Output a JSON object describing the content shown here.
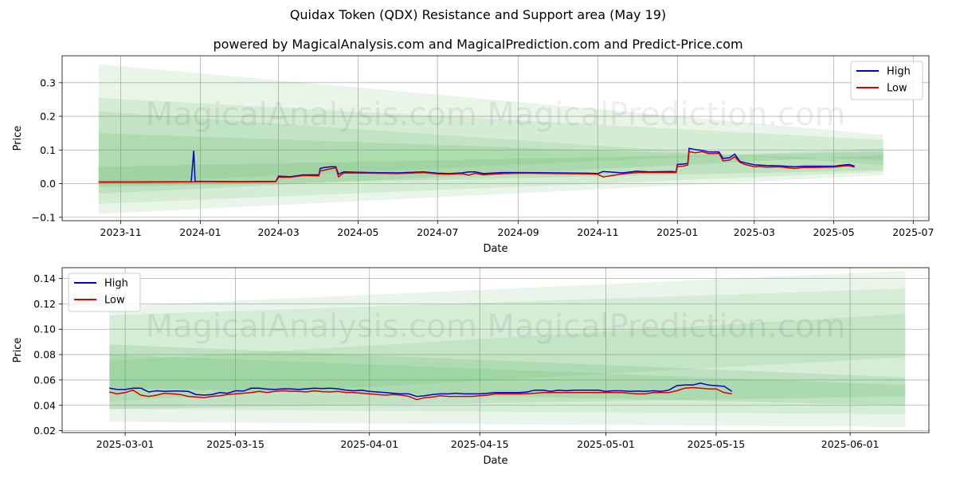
{
  "title": "Quidax Token (QDX) Resistance and Support area (May 19)",
  "subtitle": "powered by MagicalAnalysis.com and MagicalPrediction.com and Predict-Price.com",
  "watermark": "MagicalAnalysis.com   MagicalPrediction.com",
  "colors": {
    "high": "#0000cc",
    "low": "#dd0000",
    "band": "#4caf50",
    "grid": "#b0b0b0"
  },
  "chart_data": [
    {
      "type": "line",
      "xlabel": "Date",
      "ylabel": "Price",
      "xlim": [
        "2023-09-17",
        "2025-07-13"
      ],
      "ylim": [
        -0.11,
        0.38
      ],
      "x_ticks": [
        "2023-11-01",
        "2024-01-01",
        "2024-03-01",
        "2024-05-01",
        "2024-07-01",
        "2024-09-01",
        "2024-11-01",
        "2025-01-01",
        "2025-03-01",
        "2025-05-01",
        "2025-07-01"
      ],
      "x_tick_labels": [
        "2023-11",
        "2024-01",
        "2024-03",
        "2024-05",
        "2024-07",
        "2024-09",
        "2024-11",
        "2025-01",
        "2025-03",
        "2025-05",
        "2025-07"
      ],
      "y_ticks": [
        -0.1,
        0.0,
        0.1,
        0.2,
        0.3
      ],
      "y_tick_labels": [
        "−0.1",
        "0.0",
        "0.1",
        "0.2",
        "0.3"
      ],
      "grid": true,
      "legend": "top-right",
      "bands": [
        {
          "x": [
            "2023-10-15",
            "2025-06-08"
          ],
          "top": [
            0.355,
            0.145
          ],
          "bottom": [
            -0.09,
            0.025
          ],
          "opacity": 0.13
        },
        {
          "x": [
            "2023-10-15",
            "2025-06-08"
          ],
          "top": [
            0.255,
            0.13
          ],
          "bottom": [
            -0.06,
            0.035
          ],
          "opacity": 0.13
        },
        {
          "x": [
            "2023-10-15",
            "2025-06-08"
          ],
          "top": [
            0.15,
            0.07
          ],
          "bottom": [
            -0.03,
            0.085
          ],
          "opacity": 0.16
        },
        {
          "x": [
            "2023-10-15",
            "2025-06-08"
          ],
          "top": [
            0.05,
            0.095
          ],
          "bottom": [
            -0.01,
            0.04
          ],
          "opacity": 0.16
        },
        {
          "x": [
            "2023-10-15",
            "2025-06-08"
          ],
          "top": [
            0.215,
            0.055
          ],
          "bottom": [
            0.0,
            0.105
          ],
          "opacity": 0.12
        }
      ],
      "series": [
        {
          "name": "High",
          "color": "#0000cc",
          "x": [
            "2023-10-15",
            "2023-11-15",
            "2023-12-25",
            "2023-12-27",
            "2023-12-28",
            "2023-12-29",
            "2024-01-30",
            "2024-02-28",
            "2024-03-01",
            "2024-03-10",
            "2024-03-20",
            "2024-04-01",
            "2024-04-02",
            "2024-04-05",
            "2024-04-10",
            "2024-04-14",
            "2024-04-16",
            "2024-04-20",
            "2024-05-10",
            "2024-06-01",
            "2024-06-20",
            "2024-07-01",
            "2024-07-10",
            "2024-07-20",
            "2024-07-25",
            "2024-07-30",
            "2024-08-05",
            "2024-08-20",
            "2024-09-05",
            "2024-10-01",
            "2024-10-25",
            "2024-11-01",
            "2024-11-05",
            "2024-11-20",
            "2024-12-01",
            "2024-12-10",
            "2024-12-28",
            "2024-12-31",
            "2025-01-01",
            "2025-01-05",
            "2025-01-09",
            "2025-01-10",
            "2025-01-15",
            "2025-01-20",
            "2025-01-25",
            "2025-02-02",
            "2025-02-05",
            "2025-02-10",
            "2025-02-14",
            "2025-02-18",
            "2025-02-22",
            "2025-03-01",
            "2025-03-05",
            "2025-03-10",
            "2025-03-20",
            "2025-04-01",
            "2025-04-07",
            "2025-04-15",
            "2025-05-01",
            "2025-05-10",
            "2025-05-13",
            "2025-05-17"
          ],
          "y": [
            0.005,
            0.005,
            0.006,
            0.098,
            0.006,
            0.007,
            0.006,
            0.007,
            0.022,
            0.021,
            0.026,
            0.026,
            0.045,
            0.048,
            0.05,
            0.05,
            0.028,
            0.035,
            0.033,
            0.032,
            0.035,
            0.031,
            0.03,
            0.032,
            0.035,
            0.035,
            0.03,
            0.033,
            0.033,
            0.032,
            0.031,
            0.03,
            0.036,
            0.032,
            0.037,
            0.035,
            0.036,
            0.035,
            0.057,
            0.058,
            0.06,
            0.105,
            0.101,
            0.099,
            0.094,
            0.094,
            0.075,
            0.077,
            0.088,
            0.066,
            0.062,
            0.056,
            0.055,
            0.054,
            0.053,
            0.05,
            0.052,
            0.052,
            0.052,
            0.056,
            0.057,
            0.052
          ]
        },
        {
          "name": "Low",
          "color": "#dd0000",
          "x": [
            "2023-10-15",
            "2023-11-15",
            "2023-12-25",
            "2023-12-29",
            "2024-01-30",
            "2024-02-28",
            "2024-03-01",
            "2024-03-10",
            "2024-03-20",
            "2024-04-01",
            "2024-04-02",
            "2024-04-05",
            "2024-04-10",
            "2024-04-14",
            "2024-04-16",
            "2024-04-20",
            "2024-05-10",
            "2024-06-01",
            "2024-06-20",
            "2024-07-01",
            "2024-07-10",
            "2024-07-20",
            "2024-07-25",
            "2024-07-30",
            "2024-08-05",
            "2024-08-20",
            "2024-09-05",
            "2024-10-01",
            "2024-10-25",
            "2024-11-01",
            "2024-11-05",
            "2024-11-20",
            "2024-12-01",
            "2024-12-10",
            "2024-12-28",
            "2024-12-31",
            "2025-01-01",
            "2025-01-05",
            "2025-01-09",
            "2025-01-10",
            "2025-01-15",
            "2025-01-20",
            "2025-01-25",
            "2025-02-02",
            "2025-02-05",
            "2025-02-10",
            "2025-02-14",
            "2025-02-18",
            "2025-02-22",
            "2025-03-01",
            "2025-03-05",
            "2025-03-10",
            "2025-03-20",
            "2025-04-01",
            "2025-04-07",
            "2025-04-15",
            "2025-05-01",
            "2025-05-10",
            "2025-05-13",
            "2025-05-17"
          ],
          "y": [
            0.004,
            0.004,
            0.005,
            0.006,
            0.005,
            0.006,
            0.019,
            0.019,
            0.024,
            0.023,
            0.038,
            0.04,
            0.044,
            0.047,
            0.02,
            0.032,
            0.031,
            0.03,
            0.033,
            0.029,
            0.028,
            0.03,
            0.025,
            0.031,
            0.026,
            0.03,
            0.031,
            0.03,
            0.029,
            0.028,
            0.02,
            0.029,
            0.033,
            0.033,
            0.033,
            0.033,
            0.051,
            0.052,
            0.055,
            0.095,
            0.092,
            0.095,
            0.089,
            0.09,
            0.068,
            0.07,
            0.08,
            0.063,
            0.057,
            0.05,
            0.051,
            0.049,
            0.05,
            0.045,
            0.048,
            0.048,
            0.049,
            0.053,
            0.053,
            0.049
          ]
        }
      ]
    },
    {
      "type": "line",
      "xlabel": "Date",
      "ylabel": "Price",
      "xlim": [
        "2025-02-21",
        "2025-06-11"
      ],
      "ylim": [
        0.0185,
        0.1485
      ],
      "x_ticks": [
        "2025-03-01",
        "2025-03-15",
        "2025-04-01",
        "2025-04-15",
        "2025-05-01",
        "2025-05-15",
        "2025-06-01"
      ],
      "x_tick_labels": [
        "2025-03-01",
        "2025-03-15",
        "2025-04-01",
        "2025-04-15",
        "2025-05-01",
        "2025-05-15",
        "2025-06-01"
      ],
      "y_ticks": [
        0.02,
        0.04,
        0.06,
        0.08,
        0.1,
        0.12,
        0.14
      ],
      "y_tick_labels": [
        "0.02",
        "0.04",
        "0.06",
        "0.08",
        "0.10",
        "0.12",
        "0.14"
      ],
      "grid": true,
      "legend": "top-left",
      "bands": [
        {
          "x": [
            "2025-02-27",
            "2025-06-08"
          ],
          "top": [
            0.118,
            0.146
          ],
          "bottom": [
            0.027,
            0.023
          ],
          "opacity": 0.12
        },
        {
          "x": [
            "2025-02-27",
            "2025-06-08"
          ],
          "top": [
            0.111,
            0.132
          ],
          "bottom": [
            0.037,
            0.033
          ],
          "opacity": 0.12
        },
        {
          "x": [
            "2025-02-27",
            "2025-06-08"
          ],
          "top": [
            0.088,
            0.062
          ],
          "bottom": [
            0.054,
            0.04
          ],
          "opacity": 0.16
        },
        {
          "x": [
            "2025-02-27",
            "2025-06-08"
          ],
          "top": [
            0.08,
            0.056
          ],
          "bottom": [
            0.037,
            0.047
          ],
          "opacity": 0.15
        },
        {
          "x": [
            "2025-02-27",
            "2025-06-08"
          ],
          "top": [
            0.075,
            0.112
          ],
          "bottom": [
            0.043,
            0.078
          ],
          "opacity": 0.13
        }
      ],
      "series": [
        {
          "name": "High",
          "color": "#0000cc",
          "x": [
            "2025-02-27",
            "2025-02-28",
            "2025-03-01",
            "2025-03-02",
            "2025-03-03",
            "2025-03-04",
            "2025-03-05",
            "2025-03-06",
            "2025-03-07",
            "2025-03-08",
            "2025-03-09",
            "2025-03-10",
            "2025-03-11",
            "2025-03-12",
            "2025-03-13",
            "2025-03-14",
            "2025-03-15",
            "2025-03-16",
            "2025-03-17",
            "2025-03-18",
            "2025-03-19",
            "2025-03-20",
            "2025-03-21",
            "2025-03-22",
            "2025-03-23",
            "2025-03-24",
            "2025-03-25",
            "2025-03-26",
            "2025-03-27",
            "2025-03-28",
            "2025-03-29",
            "2025-03-30",
            "2025-03-31",
            "2025-04-01",
            "2025-04-02",
            "2025-04-03",
            "2025-04-04",
            "2025-04-05",
            "2025-04-06",
            "2025-04-07",
            "2025-04-08",
            "2025-04-09",
            "2025-04-10",
            "2025-04-11",
            "2025-04-12",
            "2025-04-13",
            "2025-04-14",
            "2025-04-15",
            "2025-04-16",
            "2025-04-17",
            "2025-04-18",
            "2025-04-19",
            "2025-04-20",
            "2025-04-21",
            "2025-04-22",
            "2025-04-23",
            "2025-04-24",
            "2025-04-25",
            "2025-04-26",
            "2025-04-27",
            "2025-04-28",
            "2025-04-29",
            "2025-04-30",
            "2025-05-01",
            "2025-05-02",
            "2025-05-03",
            "2025-05-04",
            "2025-05-05",
            "2025-05-06",
            "2025-05-07",
            "2025-05-08",
            "2025-05-09",
            "2025-05-10",
            "2025-05-11",
            "2025-05-12",
            "2025-05-13",
            "2025-05-14",
            "2025-05-15",
            "2025-05-16",
            "2025-05-17"
          ],
          "y": [
            0.0535,
            0.0525,
            0.0525,
            0.0535,
            0.0535,
            0.0505,
            0.0515,
            0.051,
            0.0512,
            0.0512,
            0.051,
            0.0485,
            0.048,
            0.0485,
            0.05,
            0.0495,
            0.0515,
            0.0512,
            0.0535,
            0.0535,
            0.0528,
            0.0525,
            0.053,
            0.053,
            0.0525,
            0.053,
            0.0535,
            0.0532,
            0.0535,
            0.053,
            0.052,
            0.0515,
            0.052,
            0.051,
            0.0505,
            0.05,
            0.0495,
            0.049,
            0.049,
            0.047,
            0.0475,
            0.0485,
            0.049,
            0.049,
            0.0495,
            0.049,
            0.049,
            0.049,
            0.0495,
            0.05,
            0.05,
            0.05,
            0.05,
            0.0505,
            0.052,
            0.052,
            0.051,
            0.052,
            0.0515,
            0.052,
            0.052,
            0.052,
            0.052,
            0.051,
            0.0515,
            0.0515,
            0.051,
            0.0512,
            0.051,
            0.0515,
            0.051,
            0.052,
            0.0555,
            0.056,
            0.056,
            0.0575,
            0.056,
            0.0555,
            0.055,
            0.051
          ]
        },
        {
          "name": "Low",
          "color": "#dd0000",
          "x": [
            "2025-02-27",
            "2025-02-28",
            "2025-03-01",
            "2025-03-02",
            "2025-03-03",
            "2025-03-04",
            "2025-03-05",
            "2025-03-06",
            "2025-03-07",
            "2025-03-08",
            "2025-03-09",
            "2025-03-10",
            "2025-03-11",
            "2025-03-12",
            "2025-03-13",
            "2025-03-14",
            "2025-03-15",
            "2025-03-16",
            "2025-03-17",
            "2025-03-18",
            "2025-03-19",
            "2025-03-20",
            "2025-03-21",
            "2025-03-22",
            "2025-03-23",
            "2025-03-24",
            "2025-03-25",
            "2025-03-26",
            "2025-03-27",
            "2025-03-28",
            "2025-03-29",
            "2025-03-30",
            "2025-03-31",
            "2025-04-01",
            "2025-04-02",
            "2025-04-03",
            "2025-04-04",
            "2025-04-05",
            "2025-04-06",
            "2025-04-07",
            "2025-04-08",
            "2025-04-09",
            "2025-04-10",
            "2025-04-11",
            "2025-04-12",
            "2025-04-13",
            "2025-04-14",
            "2025-04-15",
            "2025-04-16",
            "2025-04-17",
            "2025-04-18",
            "2025-04-19",
            "2025-04-20",
            "2025-04-21",
            "2025-04-22",
            "2025-04-23",
            "2025-04-24",
            "2025-04-25",
            "2025-04-26",
            "2025-04-27",
            "2025-04-28",
            "2025-04-29",
            "2025-04-30",
            "2025-05-01",
            "2025-05-02",
            "2025-05-03",
            "2025-05-04",
            "2025-05-05",
            "2025-05-06",
            "2025-05-07",
            "2025-05-08",
            "2025-05-09",
            "2025-05-10",
            "2025-05-11",
            "2025-05-12",
            "2025-05-13",
            "2025-05-14",
            "2025-05-15",
            "2025-05-16",
            "2025-05-17"
          ],
          "y": [
            0.0505,
            0.049,
            0.05,
            0.052,
            0.048,
            0.047,
            0.048,
            0.0495,
            0.049,
            0.0485,
            0.047,
            0.0465,
            0.046,
            0.047,
            0.0475,
            0.0485,
            0.049,
            0.0495,
            0.05,
            0.051,
            0.05,
            0.051,
            0.0515,
            0.051,
            0.051,
            0.0505,
            0.0515,
            0.0508,
            0.0505,
            0.051,
            0.05,
            0.05,
            0.0495,
            0.049,
            0.0485,
            0.048,
            0.0485,
            0.048,
            0.047,
            0.0445,
            0.046,
            0.0465,
            0.0475,
            0.047,
            0.047,
            0.047,
            0.047,
            0.0475,
            0.048,
            0.049,
            0.049,
            0.049,
            0.049,
            0.0492,
            0.0495,
            0.05,
            0.05,
            0.05,
            0.05,
            0.05,
            0.05,
            0.05,
            0.05,
            0.05,
            0.05,
            0.05,
            0.0495,
            0.049,
            0.049,
            0.05,
            0.05,
            0.05,
            0.0515,
            0.0535,
            0.054,
            0.0535,
            0.053,
            0.053,
            0.05,
            0.049
          ]
        }
      ]
    }
  ]
}
